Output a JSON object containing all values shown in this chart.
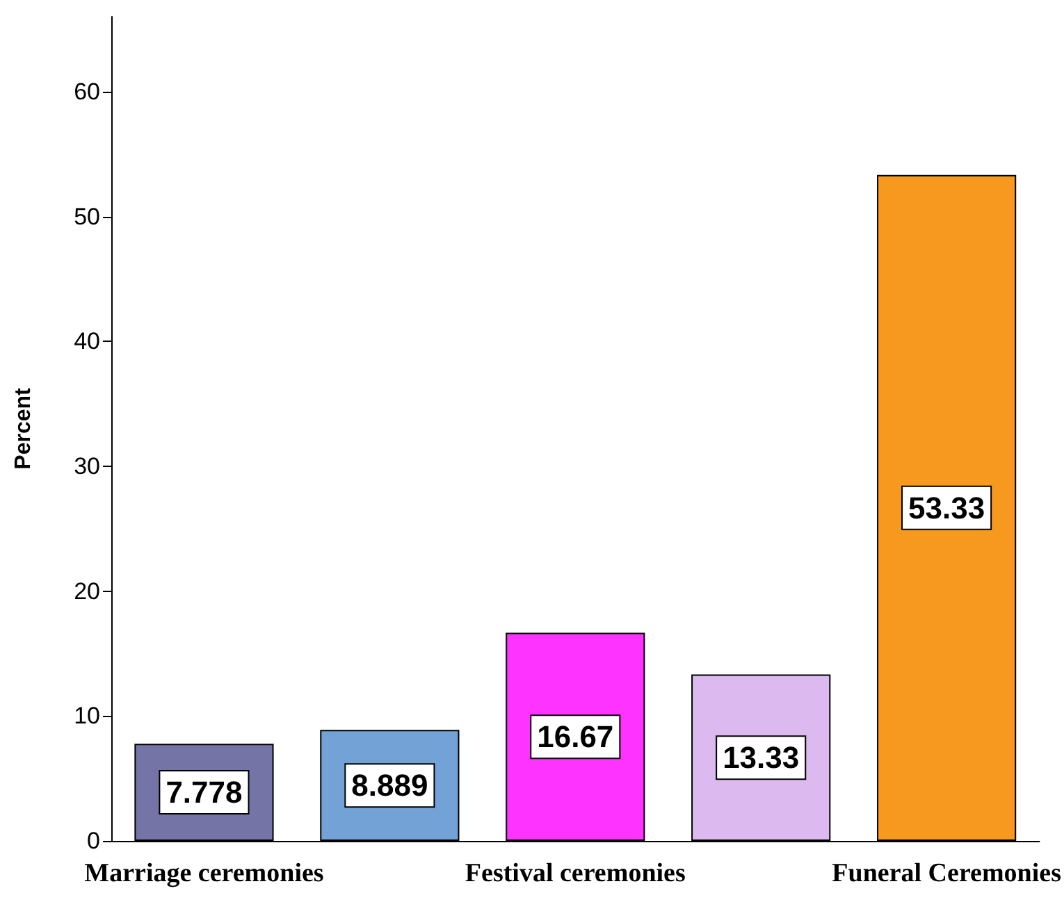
{
  "chart_data": {
    "type": "bar",
    "ylabel": "Percent",
    "categories": [
      "Marriage ceremonies",
      null,
      "Festival ceremonies",
      null,
      "Funeral Ceremonies"
    ],
    "values": [
      7.778,
      8.889,
      16.67,
      13.33,
      53.33
    ],
    "colors": [
      "#7474a6",
      "#72a2d6",
      "#ff33ff",
      "#dcbaf0",
      "#f7991f"
    ],
    "ylim": [
      0,
      66
    ],
    "yticks": [
      0,
      10,
      20,
      30,
      40,
      50,
      60
    ],
    "grid": false,
    "data_labels": true
  }
}
